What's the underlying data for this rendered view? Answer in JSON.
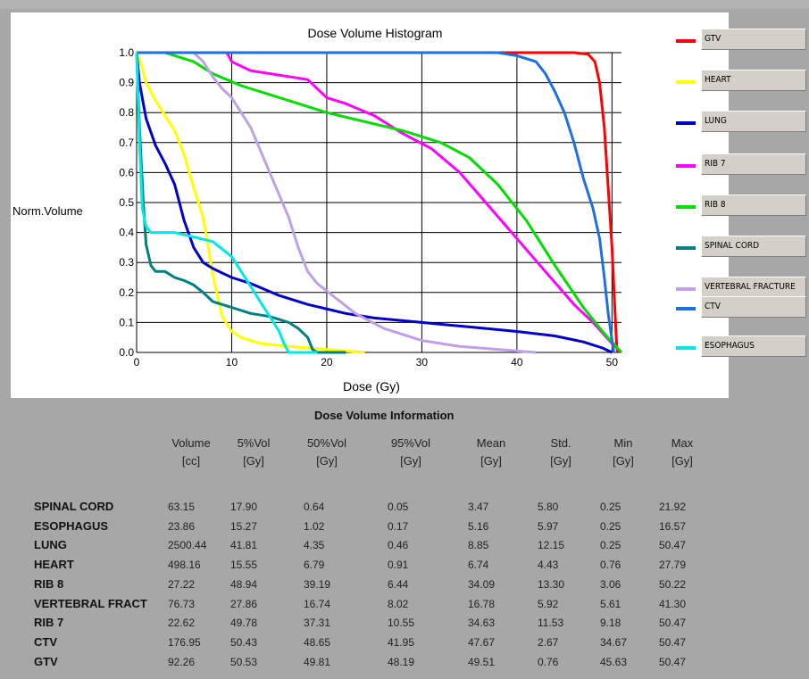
{
  "chart_data": {
    "type": "line",
    "title": "Dose Volume Histogram",
    "xlabel": "Dose (Gy)",
    "ylabel": "Norm.Volume",
    "xlim": [
      0,
      51
    ],
    "ylim": [
      0,
      1.0
    ],
    "x_ticks": [
      "0",
      "10",
      "20",
      "30",
      "40",
      "50"
    ],
    "y_ticks": [
      "0.0",
      "0.1",
      "0.2",
      "0.3",
      "0.4",
      "0.5",
      "0.6",
      "0.7",
      "0.8",
      "0.9",
      "1.0"
    ],
    "grid": true,
    "legend": "right",
    "series": [
      {
        "name": "GTV",
        "color": "#ff0000",
        "points": [
          [
            0,
            1
          ],
          [
            46,
            1
          ],
          [
            47.5,
            0.995
          ],
          [
            48.2,
            0.97
          ],
          [
            48.7,
            0.9
          ],
          [
            49.2,
            0.75
          ],
          [
            49.6,
            0.55
          ],
          [
            50,
            0.35
          ],
          [
            50.3,
            0.15
          ],
          [
            50.5,
            0.02
          ],
          [
            50.6,
            0
          ]
        ]
      },
      {
        "name": "HEART",
        "color": "#ffff00",
        "points": [
          [
            0,
            1
          ],
          [
            0.5,
            0.96
          ],
          [
            1,
            0.9
          ],
          [
            2,
            0.84
          ],
          [
            3,
            0.79
          ],
          [
            4,
            0.74
          ],
          [
            5,
            0.66
          ],
          [
            6,
            0.55
          ],
          [
            7,
            0.45
          ],
          [
            7.5,
            0.36
          ],
          [
            8,
            0.26
          ],
          [
            9,
            0.12
          ],
          [
            10,
            0.07
          ],
          [
            11,
            0.05
          ],
          [
            13,
            0.03
          ],
          [
            16,
            0.02
          ],
          [
            20,
            0.01
          ],
          [
            24,
            0
          ]
        ]
      },
      {
        "name": "LUNG",
        "color": "#0000cc",
        "points": [
          [
            0,
            1
          ],
          [
            0.3,
            0.9
          ],
          [
            1,
            0.78
          ],
          [
            2,
            0.69
          ],
          [
            3,
            0.63
          ],
          [
            4,
            0.56
          ],
          [
            5,
            0.44
          ],
          [
            6,
            0.35
          ],
          [
            7,
            0.3
          ],
          [
            8,
            0.28
          ],
          [
            10,
            0.25
          ],
          [
            12,
            0.23
          ],
          [
            15,
            0.19
          ],
          [
            18,
            0.16
          ],
          [
            22,
            0.13
          ],
          [
            25,
            0.115
          ],
          [
            30,
            0.1
          ],
          [
            35,
            0.085
          ],
          [
            40,
            0.07
          ],
          [
            44,
            0.055
          ],
          [
            47,
            0.035
          ],
          [
            49,
            0.015
          ],
          [
            50,
            0
          ]
        ]
      },
      {
        "name": "RIB 7",
        "color": "#ff00ff",
        "points": [
          [
            0,
            1
          ],
          [
            9.5,
            1
          ],
          [
            10,
            0.97
          ],
          [
            12,
            0.94
          ],
          [
            15,
            0.925
          ],
          [
            18,
            0.91
          ],
          [
            19,
            0.88
          ],
          [
            20,
            0.85
          ],
          [
            22,
            0.83
          ],
          [
            25,
            0.79
          ],
          [
            28,
            0.73
          ],
          [
            31,
            0.68
          ],
          [
            34,
            0.6
          ],
          [
            37,
            0.49
          ],
          [
            40,
            0.38
          ],
          [
            43,
            0.27
          ],
          [
            46,
            0.16
          ],
          [
            48,
            0.1
          ],
          [
            50,
            0.03
          ],
          [
            51,
            0
          ]
        ]
      },
      {
        "name": "RIB 8",
        "color": "#00dd00",
        "points": [
          [
            0,
            1
          ],
          [
            3,
            1
          ],
          [
            6,
            0.97
          ],
          [
            8,
            0.93
          ],
          [
            11,
            0.89
          ],
          [
            14,
            0.86
          ],
          [
            17,
            0.83
          ],
          [
            20,
            0.8
          ],
          [
            24,
            0.77
          ],
          [
            28,
            0.74
          ],
          [
            32,
            0.7
          ],
          [
            35,
            0.65
          ],
          [
            38,
            0.56
          ],
          [
            41,
            0.44
          ],
          [
            44,
            0.29
          ],
          [
            47,
            0.15
          ],
          [
            49,
            0.07
          ],
          [
            51,
            0
          ]
        ]
      },
      {
        "name": "SPINAL CORD",
        "color": "#008080",
        "points": [
          [
            0,
            1
          ],
          [
            0.3,
            0.75
          ],
          [
            0.7,
            0.5
          ],
          [
            1,
            0.36
          ],
          [
            1.5,
            0.29
          ],
          [
            2,
            0.27
          ],
          [
            3,
            0.27
          ],
          [
            4,
            0.25
          ],
          [
            5,
            0.24
          ],
          [
            6,
            0.225
          ],
          [
            7,
            0.2
          ],
          [
            8,
            0.17
          ],
          [
            10,
            0.15
          ],
          [
            12,
            0.13
          ],
          [
            14,
            0.12
          ],
          [
            16,
            0.1
          ],
          [
            17,
            0.08
          ],
          [
            18,
            0.05
          ],
          [
            18.5,
            0.01
          ],
          [
            19,
            0
          ],
          [
            22,
            0
          ]
        ]
      },
      {
        "name": "VERTEBRAL FRACTURE",
        "color": "#c0a0e8",
        "points": [
          [
            0,
            1
          ],
          [
            6,
            1
          ],
          [
            7,
            0.97
          ],
          [
            8,
            0.92
          ],
          [
            9,
            0.88
          ],
          [
            10,
            0.85
          ],
          [
            12,
            0.75
          ],
          [
            14,
            0.6
          ],
          [
            16,
            0.45
          ],
          [
            17,
            0.35
          ],
          [
            18,
            0.27
          ],
          [
            19,
            0.23
          ],
          [
            21,
            0.18
          ],
          [
            23,
            0.13
          ],
          [
            26,
            0.08
          ],
          [
            30,
            0.04
          ],
          [
            34,
            0.02
          ],
          [
            38,
            0.01
          ],
          [
            42,
            0
          ]
        ]
      },
      {
        "name": "CTV",
        "color": "#1e6fe0",
        "points": [
          [
            0,
            1
          ],
          [
            38,
            1
          ],
          [
            40,
            0.99
          ],
          [
            42,
            0.97
          ],
          [
            43,
            0.93
          ],
          [
            44,
            0.87
          ],
          [
            45,
            0.8
          ],
          [
            46,
            0.7
          ],
          [
            47,
            0.58
          ],
          [
            48,
            0.48
          ],
          [
            48.7,
            0.38
          ],
          [
            49.2,
            0.25
          ],
          [
            49.6,
            0.13
          ],
          [
            50,
            0.04
          ],
          [
            50.2,
            0
          ]
        ]
      },
      {
        "name": "ESOPHAGUS",
        "color": "#00e8e8",
        "points": [
          [
            0,
            1
          ],
          [
            0.3,
            0.7
          ],
          [
            0.6,
            0.48
          ],
          [
            1,
            0.42
          ],
          [
            1.5,
            0.4
          ],
          [
            4,
            0.4
          ],
          [
            6,
            0.385
          ],
          [
            8,
            0.37
          ],
          [
            10,
            0.32
          ],
          [
            11,
            0.27
          ],
          [
            12,
            0.22
          ],
          [
            13,
            0.17
          ],
          [
            14,
            0.12
          ],
          [
            15,
            0.07
          ],
          [
            15.5,
            0.03
          ],
          [
            16,
            0
          ],
          [
            19,
            0
          ]
        ]
      }
    ]
  },
  "legend_items": [
    "GTV",
    "HEART",
    "LUNG",
    "RIB  7",
    "RIB  8",
    "SPINAL CORD",
    "VERTEBRAL FRACTURE",
    "CTV",
    "ESOPHAGUS"
  ],
  "table": {
    "title": "Dose Volume Information",
    "columns": [
      [
        "Volume",
        "[cc]"
      ],
      [
        "5%Vol",
        "[Gy]"
      ],
      [
        "50%Vol",
        "[Gy]"
      ],
      [
        "95%Vol",
        "[Gy]"
      ],
      [
        "Mean",
        "[Gy]"
      ],
      [
        "Std.",
        "[Gy]"
      ],
      [
        "Min",
        "[Gy]"
      ],
      [
        "Max",
        "[Gy]"
      ]
    ],
    "rows": [
      {
        "label": "SPINAL CORD",
        "values": [
          "63.15",
          "17.90",
          "0.64",
          "0.05",
          "3.47",
          "5.80",
          "0.25",
          "21.92"
        ]
      },
      {
        "label": "ESOPHAGUS",
        "values": [
          "23.86",
          "15.27",
          "1.02",
          "0.17",
          "5.16",
          "5.97",
          "0.25",
          "16.57"
        ]
      },
      {
        "label": "LUNG",
        "values": [
          "2500.44",
          "41.81",
          "4.35",
          "0.46",
          "8.85",
          "12.15",
          "0.25",
          "50.47"
        ]
      },
      {
        "label": "HEART",
        "values": [
          "498.16",
          "15.55",
          "6.79",
          "0.91",
          "6.74",
          "4.43",
          "0.76",
          "27.79"
        ]
      },
      {
        "label": "RIB  8",
        "values": [
          "27.22",
          "48.94",
          "39.19",
          "6.44",
          "34.09",
          "13.30",
          "3.06",
          "50.22"
        ]
      },
      {
        "label": "VERTEBRAL FRACT",
        "values": [
          "76.73",
          "27.86",
          "16.74",
          "8.02",
          "16.78",
          "5.92",
          "5.61",
          "41.30"
        ]
      },
      {
        "label": "RIB  7",
        "values": [
          "22.62",
          "49.78",
          "37.31",
          "10.55",
          "34.63",
          "11.53",
          "9.18",
          "50.47"
        ]
      },
      {
        "label": "CTV",
        "values": [
          "176.95",
          "50.43",
          "48.65",
          "41.95",
          "47.67",
          "2.67",
          "34.67",
          "50.47"
        ]
      },
      {
        "label": "GTV",
        "values": [
          "92.26",
          "50.53",
          "49.81",
          "48.19",
          "49.51",
          "0.76",
          "45.63",
          "50.47"
        ]
      }
    ]
  }
}
